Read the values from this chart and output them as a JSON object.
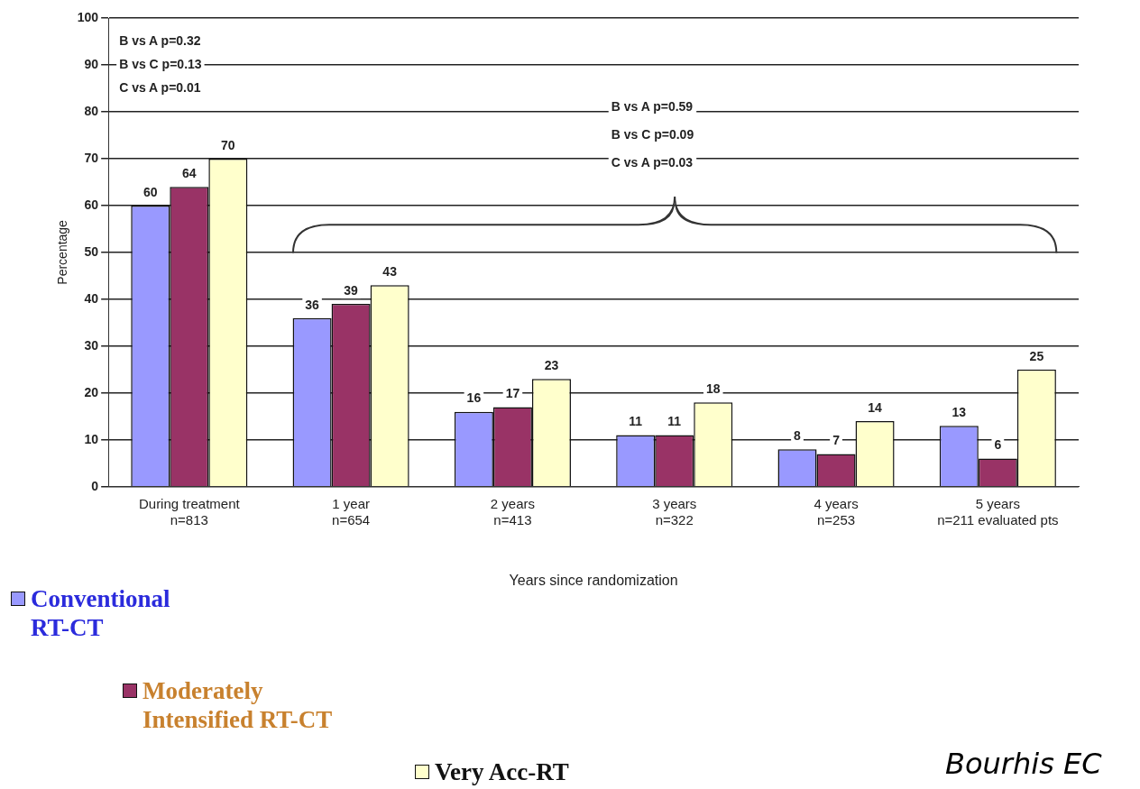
{
  "chart_data": {
    "type": "bar",
    "xlabel": "Years since randomization",
    "ylabel": "Percentage",
    "categories": [
      "During treatment\nn=813",
      "1 year\nn=654",
      "2 years\nn=413",
      "3 years\nn=322",
      "4 years\nn=253",
      "5 years\nn=211 evaluated pts"
    ],
    "series": [
      {
        "name": "Conventional RT-CT",
        "color": "#9999ff",
        "values": [
          60,
          36,
          16,
          11,
          8,
          13
        ]
      },
      {
        "name": "Moderately Intensified RT-CT",
        "color": "#993366",
        "values": [
          64,
          39,
          17,
          11,
          7,
          6
        ]
      },
      {
        "name": "Very Acc-RT",
        "color": "#ffffcc",
        "values": [
          70,
          43,
          23,
          18,
          14,
          25
        ]
      }
    ],
    "ylim": [
      0,
      100
    ],
    "yticks": [
      0,
      10,
      20,
      30,
      40,
      50,
      60,
      70,
      80,
      90,
      100
    ],
    "grid": "y",
    "data_labels": true,
    "legend": "bottom left",
    "annotations": [
      "B vs A p=0.32",
      "B vs C p=0.13",
      "C vs A p=0.01",
      "B vs A p=0.59",
      "B vs C p=0.09",
      "C vs A p=0.03",
      "Bourhis EC"
    ]
  }
}
